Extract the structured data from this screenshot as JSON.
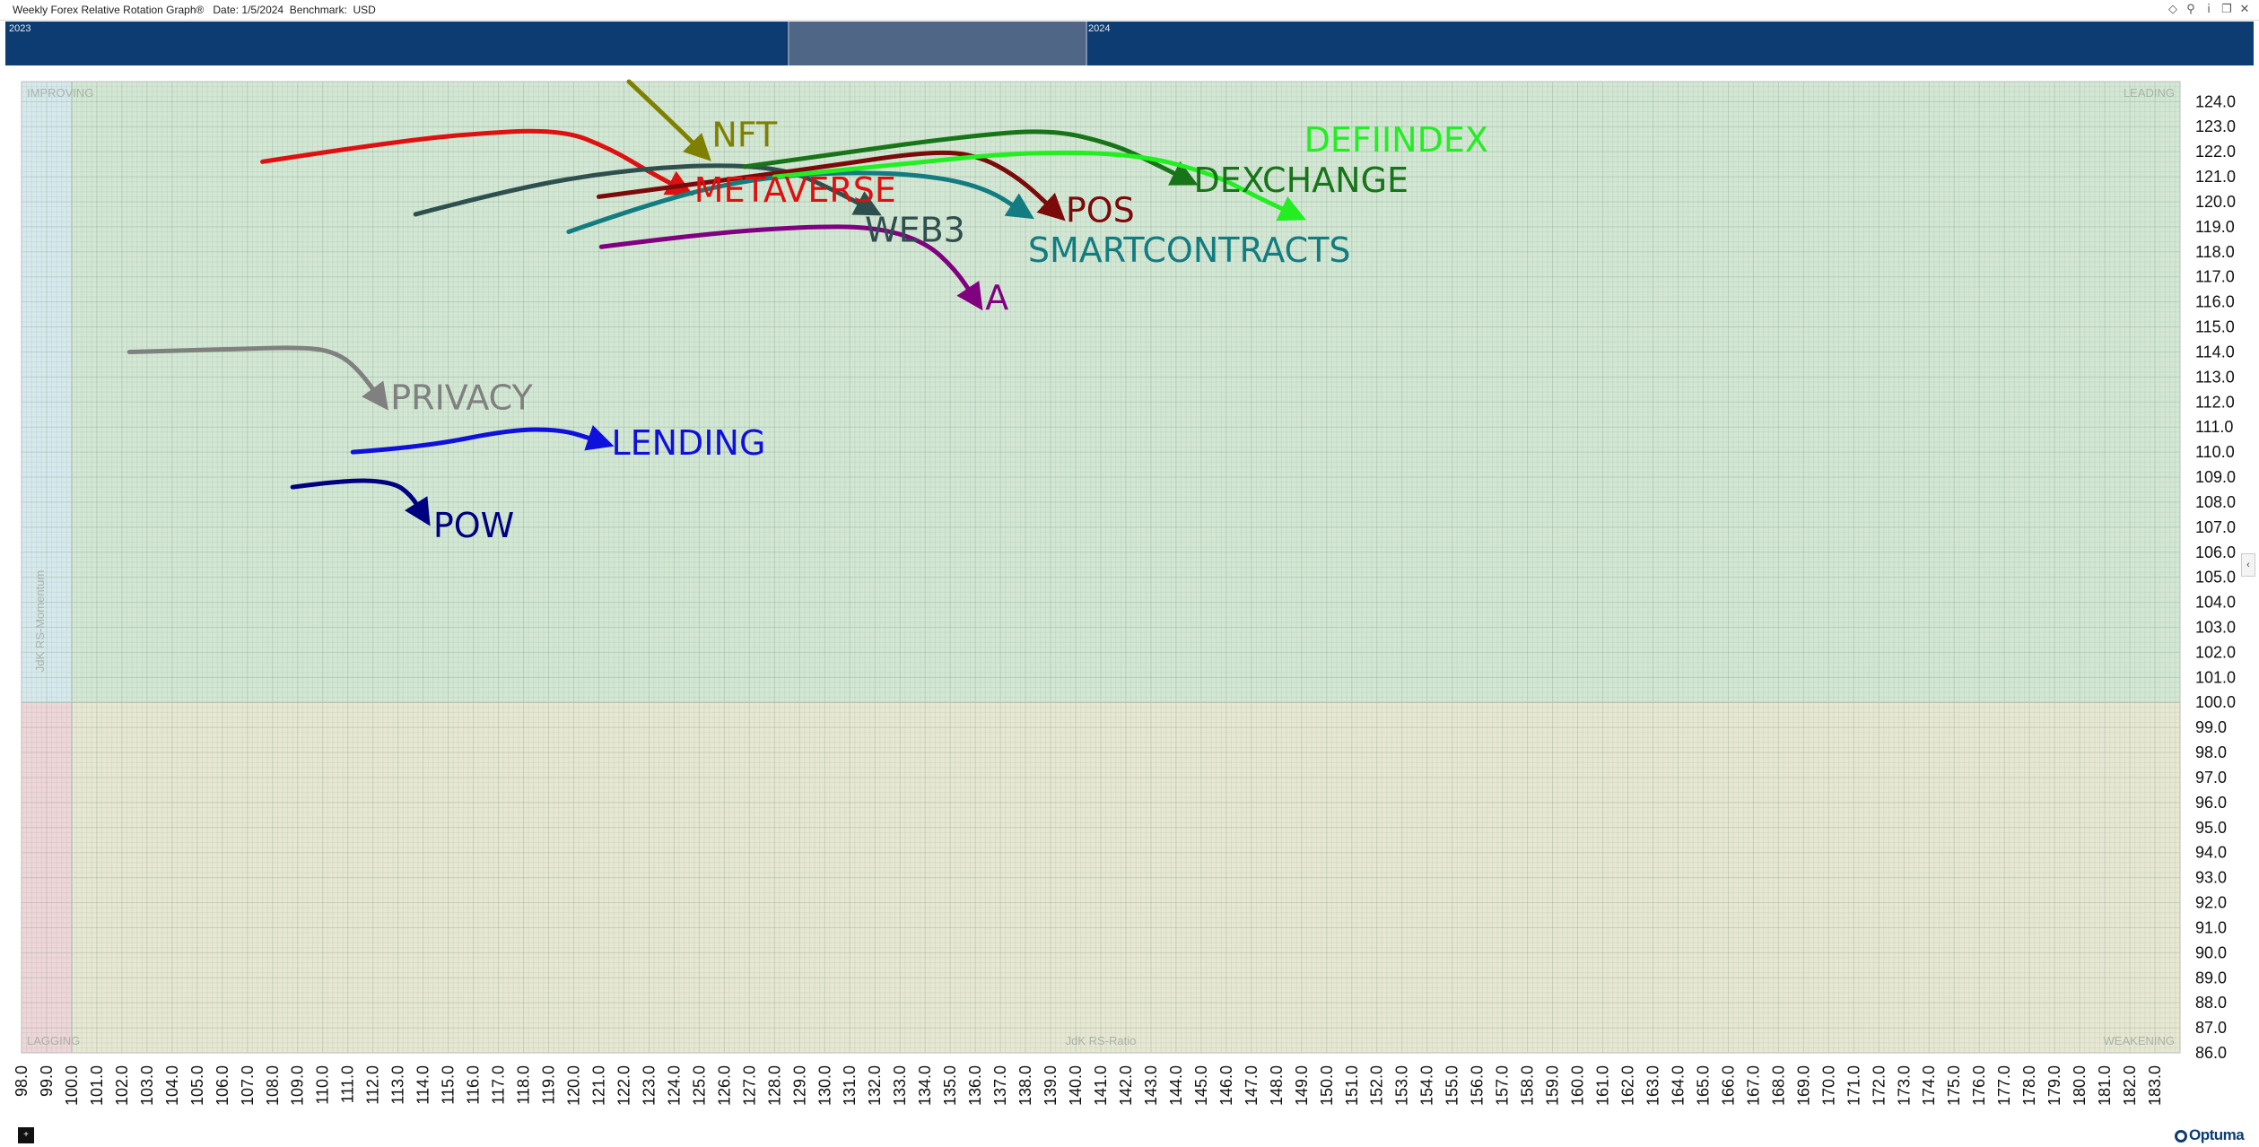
{
  "window": {
    "title": "Weekly Forex Relative Rotation Graph®   Date: 1/5/2024  Benchmark:  USD",
    "icons": [
      "diamond-icon",
      "pin-icon",
      "info-icon",
      "restore-window-icon",
      "close-icon"
    ]
  },
  "timeline": {
    "start_label": "2023",
    "end_label": "2024"
  },
  "quadrants": {
    "improving": "IMPROVING",
    "leading": "LEADING",
    "lagging": "LAGGING",
    "weakening": "WEAKENING",
    "colors": {
      "improving": "#d6e9ec",
      "leading": "#d3e8d4",
      "lagging": "#eed6d9",
      "weakening": "#e7e8d3"
    }
  },
  "footer": {
    "brand": "Optuma",
    "button": "+"
  },
  "chart_data": {
    "type": "scatter",
    "title": "",
    "xlabel": "JdK RS-Ratio",
    "ylabel": "JdK RS-Momentum",
    "xlim": [
      98,
      184
    ],
    "ylim": [
      86,
      124.8
    ],
    "center": [
      100,
      100
    ],
    "grid": true,
    "x_tick_labels": [
      "98.0",
      "99.0",
      "100.0",
      "101.0",
      "102.0",
      "103.0",
      "104.0",
      "105.0",
      "106.0",
      "107.0",
      "108.0",
      "109.0",
      "110.0",
      "111.0",
      "112.0",
      "113.0",
      "114.0",
      "115.0",
      "116.0",
      "117.0",
      "118.0",
      "119.0",
      "120.0",
      "121.0",
      "122.0",
      "123.0",
      "124.0",
      "125.0",
      "126.0",
      "127.0",
      "128.0",
      "129.0",
      "130.0",
      "131.0",
      "132.0",
      "133.0",
      "134.0",
      "135.0",
      "136.0",
      "137.0",
      "138.0",
      "139.0",
      "140.0",
      "141.0",
      "142.0",
      "143.0",
      "144.0",
      "145.0",
      "146.0",
      "147.0",
      "148.0",
      "149.0",
      "150.0",
      "151.0",
      "152.0",
      "153.0",
      "154.0",
      "155.0",
      "156.0",
      "157.0",
      "158.0",
      "159.0",
      "160.0",
      "161.0",
      "162.0",
      "163.0",
      "164.0",
      "165.0",
      "166.0",
      "167.0",
      "168.0",
      "169.0",
      "170.0",
      "171.0",
      "172.0",
      "173.0",
      "174.0",
      "175.0",
      "176.0",
      "177.0",
      "178.0",
      "179.0",
      "180.0",
      "181.0",
      "182.0",
      "183.0"
    ],
    "y_tick_labels": [
      "86.0",
      "87.0",
      "88.0",
      "89.0",
      "90.0",
      "91.0",
      "92.0",
      "93.0",
      "94.0",
      "95.0",
      "96.0",
      "97.0",
      "98.0",
      "99.0",
      "100.0",
      "101.0",
      "102.0",
      "103.0",
      "104.0",
      "105.0",
      "106.0",
      "107.0",
      "108.0",
      "109.0",
      "110.0",
      "111.0",
      "112.0",
      "113.0",
      "114.0",
      "115.0",
      "116.0",
      "117.0",
      "118.0",
      "119.0",
      "120.0",
      "121.0",
      "122.0",
      "123.0",
      "124.0"
    ],
    "series": [
      {
        "name": "NFT",
        "color": "#808000",
        "points": [
          [
            122.2,
            124.8
          ],
          [
            124.1,
            123.0
          ],
          [
            125.1,
            122.0
          ]
        ]
      },
      {
        "name": "METAVERSE",
        "color": "#dd1111",
        "points": [
          [
            107.6,
            121.6
          ],
          [
            111.5,
            122.2
          ],
          [
            115.5,
            122.7
          ],
          [
            119.5,
            122.9
          ],
          [
            121.5,
            122.1
          ],
          [
            123.0,
            121.2
          ],
          [
            124.3,
            120.5
          ]
        ]
      },
      {
        "name": "WEB3",
        "color": "#2f4f4f",
        "points": [
          [
            113.7,
            119.5
          ],
          [
            117.5,
            120.5
          ],
          [
            121.5,
            121.2
          ],
          [
            125.5,
            121.5
          ],
          [
            128.5,
            121.3
          ],
          [
            130.3,
            120.5
          ],
          [
            131.8,
            119.7
          ]
        ]
      },
      {
        "name": "A",
        "color": "#800080",
        "points": [
          [
            121.1,
            118.2
          ],
          [
            125.0,
            118.7
          ],
          [
            129.0,
            119.0
          ],
          [
            132.0,
            119.0
          ],
          [
            134.0,
            118.4
          ],
          [
            135.2,
            117.3
          ],
          [
            136.0,
            116.1
          ]
        ]
      },
      {
        "name": "PRIVACY",
        "color": "#808080",
        "points": [
          [
            102.3,
            114.0
          ],
          [
            106.0,
            114.1
          ],
          [
            109.5,
            114.2
          ],
          [
            110.7,
            113.9
          ],
          [
            111.5,
            113.2
          ],
          [
            112.3,
            112.1
          ]
        ]
      },
      {
        "name": "LENDING",
        "color": "#1010dd",
        "points": [
          [
            111.2,
            110.0
          ],
          [
            114.0,
            110.2
          ],
          [
            117.5,
            110.9
          ],
          [
            119.5,
            110.9
          ],
          [
            120.8,
            110.5
          ],
          [
            121.1,
            110.4
          ]
        ]
      },
      {
        "name": "POW",
        "color": "#000080",
        "points": [
          [
            108.8,
            108.6
          ],
          [
            111.0,
            108.9
          ],
          [
            112.8,
            108.8
          ],
          [
            113.5,
            108.3
          ],
          [
            114.0,
            107.5
          ]
        ]
      },
      {
        "name": "POS",
        "color": "#7b0a0a",
        "points": [
          [
            121.0,
            120.2
          ],
          [
            125.5,
            120.8
          ],
          [
            130.0,
            121.4
          ],
          [
            134.0,
            122.0
          ],
          [
            136.0,
            121.9
          ],
          [
            137.7,
            121.0
          ],
          [
            139.2,
            119.6
          ]
        ]
      },
      {
        "name": "SMARTCONTRACTS",
        "color": "#137c80",
        "points": [
          [
            119.8,
            118.8
          ],
          [
            123.5,
            120.1
          ],
          [
            127.5,
            121.0
          ],
          [
            131.5,
            121.2
          ],
          [
            134.5,
            121.0
          ],
          [
            136.5,
            120.5
          ],
          [
            137.9,
            119.6
          ]
        ]
      },
      {
        "name": "DEXCHANGE",
        "color": "#187418",
        "points": [
          [
            126.8,
            121.4
          ],
          [
            131.0,
            122.0
          ],
          [
            135.5,
            122.6
          ],
          [
            139.0,
            122.9
          ],
          [
            141.5,
            122.3
          ],
          [
            143.0,
            121.6
          ],
          [
            144.4,
            120.9
          ]
        ]
      },
      {
        "name": "DEFIINDEX",
        "color": "#22ee22",
        "points": [
          [
            128.0,
            121.0
          ],
          [
            133.0,
            121.5
          ],
          [
            138.0,
            122.0
          ],
          [
            142.5,
            121.9
          ],
          [
            145.5,
            121.1
          ],
          [
            147.2,
            120.2
          ],
          [
            148.7,
            119.5
          ]
        ]
      }
    ],
    "labels": [
      {
        "text": "NFT",
        "x": 125.5,
        "y": 122.2,
        "color": "#808000"
      },
      {
        "text": "METAVERSE",
        "x": 124.8,
        "y": 120.0,
        "color": "#dd1111"
      },
      {
        "text": "WEB3",
        "x": 131.6,
        "y": 118.4,
        "color": "#2f4f4f"
      },
      {
        "text": "A",
        "x": 136.4,
        "y": 115.7,
        "color": "#800080"
      },
      {
        "text": "PRIVACY",
        "x": 112.7,
        "y": 111.7,
        "color": "#808080"
      },
      {
        "text": "LENDING",
        "x": 121.5,
        "y": 109.9,
        "color": "#1010dd"
      },
      {
        "text": "POW",
        "x": 114.4,
        "y": 106.6,
        "color": "#000080"
      },
      {
        "text": "POS",
        "x": 139.6,
        "y": 119.2,
        "color": "#7b0a0a"
      },
      {
        "text": "SMARTCONTRACTS",
        "x": 138.1,
        "y": 117.6,
        "color": "#137c80"
      },
      {
        "text": "DEXCHANGE",
        "x": 144.7,
        "y": 120.4,
        "color": "#187418"
      },
      {
        "text": "DEFIINDEX",
        "x": 149.1,
        "y": 122.0,
        "color": "#22ee22"
      }
    ]
  }
}
